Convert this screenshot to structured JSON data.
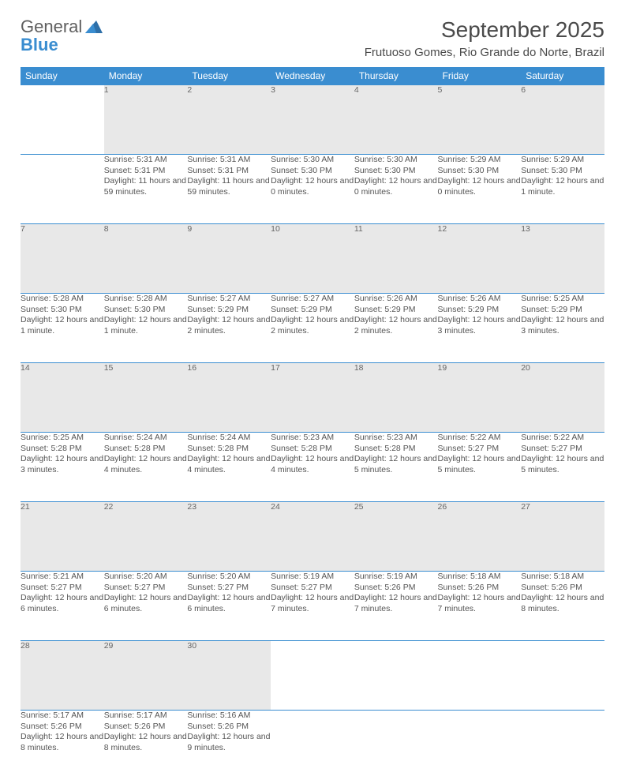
{
  "logo": {
    "text1": "General",
    "text2": "Blue"
  },
  "title": "September 2025",
  "location": "Frutuoso Gomes, Rio Grande do Norte, Brazil",
  "colors": {
    "header_bg": "#3a8dd0",
    "daynum_bg": "#e8e8e8",
    "text": "#4a4a4a",
    "rule": "#3a8dd0"
  },
  "day_headers": [
    "Sunday",
    "Monday",
    "Tuesday",
    "Wednesday",
    "Thursday",
    "Friday",
    "Saturday"
  ],
  "weeks": [
    [
      null,
      {
        "n": "1",
        "sr": "Sunrise: 5:31 AM",
        "ss": "Sunset: 5:31 PM",
        "dl": "Daylight: 11 hours and 59 minutes."
      },
      {
        "n": "2",
        "sr": "Sunrise: 5:31 AM",
        "ss": "Sunset: 5:31 PM",
        "dl": "Daylight: 11 hours and 59 minutes."
      },
      {
        "n": "3",
        "sr": "Sunrise: 5:30 AM",
        "ss": "Sunset: 5:30 PM",
        "dl": "Daylight: 12 hours and 0 minutes."
      },
      {
        "n": "4",
        "sr": "Sunrise: 5:30 AM",
        "ss": "Sunset: 5:30 PM",
        "dl": "Daylight: 12 hours and 0 minutes."
      },
      {
        "n": "5",
        "sr": "Sunrise: 5:29 AM",
        "ss": "Sunset: 5:30 PM",
        "dl": "Daylight: 12 hours and 0 minutes."
      },
      {
        "n": "6",
        "sr": "Sunrise: 5:29 AM",
        "ss": "Sunset: 5:30 PM",
        "dl": "Daylight: 12 hours and 1 minute."
      }
    ],
    [
      {
        "n": "7",
        "sr": "Sunrise: 5:28 AM",
        "ss": "Sunset: 5:30 PM",
        "dl": "Daylight: 12 hours and 1 minute."
      },
      {
        "n": "8",
        "sr": "Sunrise: 5:28 AM",
        "ss": "Sunset: 5:30 PM",
        "dl": "Daylight: 12 hours and 1 minute."
      },
      {
        "n": "9",
        "sr": "Sunrise: 5:27 AM",
        "ss": "Sunset: 5:29 PM",
        "dl": "Daylight: 12 hours and 2 minutes."
      },
      {
        "n": "10",
        "sr": "Sunrise: 5:27 AM",
        "ss": "Sunset: 5:29 PM",
        "dl": "Daylight: 12 hours and 2 minutes."
      },
      {
        "n": "11",
        "sr": "Sunrise: 5:26 AM",
        "ss": "Sunset: 5:29 PM",
        "dl": "Daylight: 12 hours and 2 minutes."
      },
      {
        "n": "12",
        "sr": "Sunrise: 5:26 AM",
        "ss": "Sunset: 5:29 PM",
        "dl": "Daylight: 12 hours and 3 minutes."
      },
      {
        "n": "13",
        "sr": "Sunrise: 5:25 AM",
        "ss": "Sunset: 5:29 PM",
        "dl": "Daylight: 12 hours and 3 minutes."
      }
    ],
    [
      {
        "n": "14",
        "sr": "Sunrise: 5:25 AM",
        "ss": "Sunset: 5:28 PM",
        "dl": "Daylight: 12 hours and 3 minutes."
      },
      {
        "n": "15",
        "sr": "Sunrise: 5:24 AM",
        "ss": "Sunset: 5:28 PM",
        "dl": "Daylight: 12 hours and 4 minutes."
      },
      {
        "n": "16",
        "sr": "Sunrise: 5:24 AM",
        "ss": "Sunset: 5:28 PM",
        "dl": "Daylight: 12 hours and 4 minutes."
      },
      {
        "n": "17",
        "sr": "Sunrise: 5:23 AM",
        "ss": "Sunset: 5:28 PM",
        "dl": "Daylight: 12 hours and 4 minutes."
      },
      {
        "n": "18",
        "sr": "Sunrise: 5:23 AM",
        "ss": "Sunset: 5:28 PM",
        "dl": "Daylight: 12 hours and 5 minutes."
      },
      {
        "n": "19",
        "sr": "Sunrise: 5:22 AM",
        "ss": "Sunset: 5:27 PM",
        "dl": "Daylight: 12 hours and 5 minutes."
      },
      {
        "n": "20",
        "sr": "Sunrise: 5:22 AM",
        "ss": "Sunset: 5:27 PM",
        "dl": "Daylight: 12 hours and 5 minutes."
      }
    ],
    [
      {
        "n": "21",
        "sr": "Sunrise: 5:21 AM",
        "ss": "Sunset: 5:27 PM",
        "dl": "Daylight: 12 hours and 6 minutes."
      },
      {
        "n": "22",
        "sr": "Sunrise: 5:20 AM",
        "ss": "Sunset: 5:27 PM",
        "dl": "Daylight: 12 hours and 6 minutes."
      },
      {
        "n": "23",
        "sr": "Sunrise: 5:20 AM",
        "ss": "Sunset: 5:27 PM",
        "dl": "Daylight: 12 hours and 6 minutes."
      },
      {
        "n": "24",
        "sr": "Sunrise: 5:19 AM",
        "ss": "Sunset: 5:27 PM",
        "dl": "Daylight: 12 hours and 7 minutes."
      },
      {
        "n": "25",
        "sr": "Sunrise: 5:19 AM",
        "ss": "Sunset: 5:26 PM",
        "dl": "Daylight: 12 hours and 7 minutes."
      },
      {
        "n": "26",
        "sr": "Sunrise: 5:18 AM",
        "ss": "Sunset: 5:26 PM",
        "dl": "Daylight: 12 hours and 7 minutes."
      },
      {
        "n": "27",
        "sr": "Sunrise: 5:18 AM",
        "ss": "Sunset: 5:26 PM",
        "dl": "Daylight: 12 hours and 8 minutes."
      }
    ],
    [
      {
        "n": "28",
        "sr": "Sunrise: 5:17 AM",
        "ss": "Sunset: 5:26 PM",
        "dl": "Daylight: 12 hours and 8 minutes."
      },
      {
        "n": "29",
        "sr": "Sunrise: 5:17 AM",
        "ss": "Sunset: 5:26 PM",
        "dl": "Daylight: 12 hours and 8 minutes."
      },
      {
        "n": "30",
        "sr": "Sunrise: 5:16 AM",
        "ss": "Sunset: 5:26 PM",
        "dl": "Daylight: 12 hours and 9 minutes."
      },
      null,
      null,
      null,
      null
    ]
  ]
}
